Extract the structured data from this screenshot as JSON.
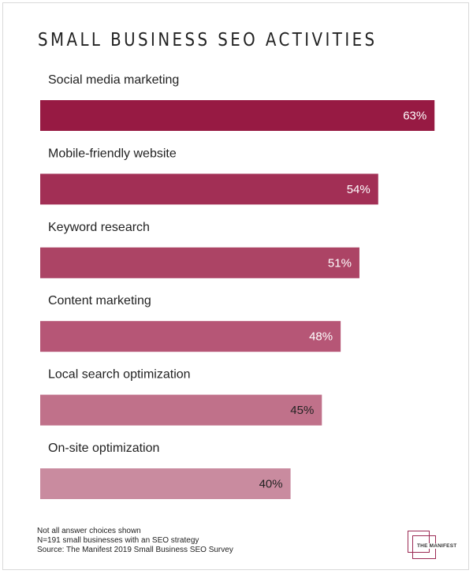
{
  "chart_data": {
    "type": "bar",
    "orientation": "horizontal",
    "title": "SMALL BUSINESS SEO ACTIVITIES",
    "categories": [
      "Social media marketing",
      "Mobile-friendly website",
      "Keyword research",
      "Content marketing",
      "Local search optimization",
      "On-site optimization"
    ],
    "values": [
      63,
      54,
      51,
      48,
      45,
      40
    ],
    "value_labels": [
      "63%",
      "54%",
      "51%",
      "48%",
      "45%",
      "40%"
    ],
    "unit": "%",
    "colors": [
      "#971a43",
      "#a22f55",
      "#ac4465",
      "#b65676",
      "#c0718a",
      "#c98b9f"
    ],
    "grid": false,
    "legend": "none"
  },
  "footer": {
    "note1": "Not all answer choices shown",
    "note2": "N=191 small businesses with an SEO strategy",
    "source": "Source: The Manifest 2019 Small Business SEO Survey"
  },
  "logo": {
    "text": "THE MANIFEST",
    "color": "#9b2a54"
  }
}
